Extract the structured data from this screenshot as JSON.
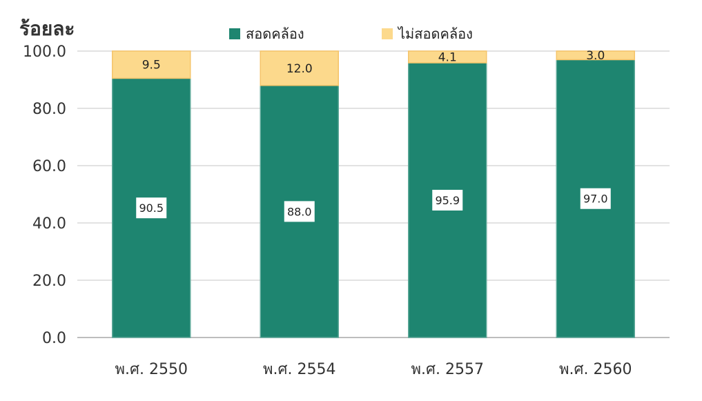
{
  "chart_data": {
    "type": "bar",
    "stacked": true,
    "ylabel": "ร้อยละ",
    "ylim": [
      0,
      100
    ],
    "yticks": [
      "0.0",
      "20.0",
      "40.0",
      "60.0",
      "80.0",
      "100.0"
    ],
    "categories": [
      "พ.ศ. 2550",
      "พ.ศ. 2554",
      "พ.ศ. 2557",
      "พ.ศ. 2560"
    ],
    "series": [
      {
        "name": "สอดคล้อง",
        "color": "#1e8570",
        "values": [
          90.5,
          88.0,
          95.9,
          97.0
        ],
        "labels": [
          "90.5",
          "88.0",
          "95.9",
          "97.0"
        ]
      },
      {
        "name": "ไม่สอดคล้อง",
        "color": "#fcd98c",
        "values": [
          9.5,
          12.0,
          4.1,
          3.0
        ],
        "labels": [
          "9.5",
          "12.0",
          "4.1",
          "3.0"
        ]
      }
    ],
    "grid": true,
    "legend": "top"
  }
}
